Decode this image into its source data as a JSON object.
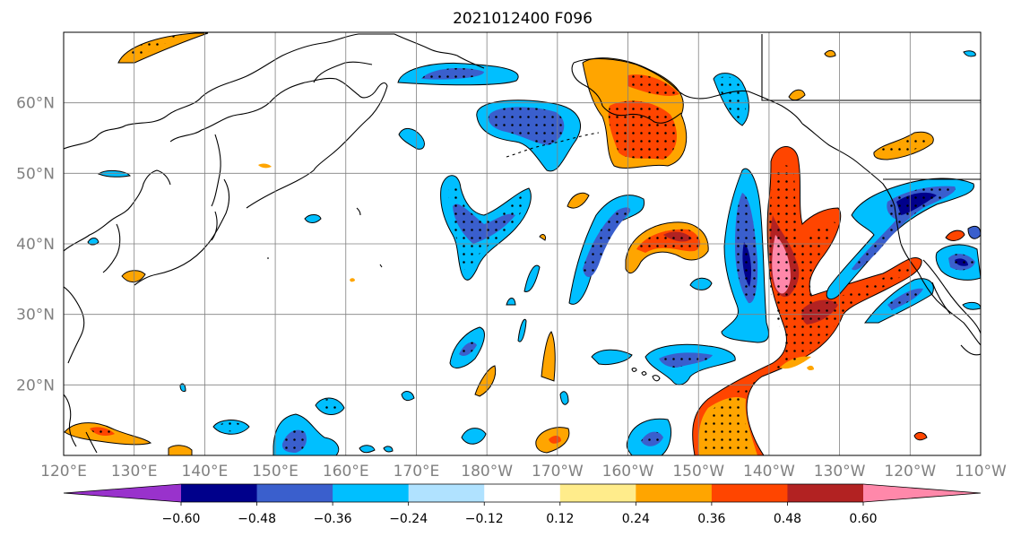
{
  "title": "2021012400 F096",
  "map": {
    "lon_range": [
      120,
      250
    ],
    "lat_range": [
      10,
      70
    ],
    "lon_ticks": [
      {
        "value": 120,
        "label": "120°E"
      },
      {
        "value": 130,
        "label": "130°E"
      },
      {
        "value": 140,
        "label": "140°E"
      },
      {
        "value": 150,
        "label": "150°E"
      },
      {
        "value": 160,
        "label": "160°E"
      },
      {
        "value": 170,
        "label": "170°E"
      },
      {
        "value": 180,
        "label": "180°W"
      },
      {
        "value": 190,
        "label": "170°W"
      },
      {
        "value": 200,
        "label": "160°W"
      },
      {
        "value": 210,
        "label": "150°W"
      },
      {
        "value": 220,
        "label": "140°W"
      },
      {
        "value": 230,
        "label": "130°W"
      },
      {
        "value": 240,
        "label": "120°W"
      },
      {
        "value": 250,
        "label": "110°W"
      }
    ],
    "lat_ticks": [
      {
        "value": 20,
        "label": "20°N"
      },
      {
        "value": 30,
        "label": "30°N"
      },
      {
        "value": 40,
        "label": "40°N"
      },
      {
        "value": 50,
        "label": "50°N"
      },
      {
        "value": 60,
        "label": "60°N"
      }
    ],
    "grid": true
  },
  "colorbar": {
    "levels": [
      -0.72,
      -0.6,
      -0.48,
      -0.36,
      -0.24,
      -0.12,
      0.12,
      0.24,
      0.36,
      0.48,
      0.6,
      0.72
    ],
    "colors": [
      "#9932CC",
      "#00008B",
      "#3A5FCD",
      "#00BFFF",
      "#B0E2FF",
      "#FFFFFF",
      "#FFEC8B",
      "#FFA500",
      "#FF4500",
      "#B22222",
      "#FF88AA"
    ],
    "extend": "both",
    "tick_labels": [
      "−0.60",
      "−0.48",
      "−0.36",
      "−0.24",
      "−0.12",
      "0.12",
      "0.24",
      "0.36",
      "0.48",
      "0.60"
    ],
    "tick_values": [
      -0.6,
      -0.48,
      -0.36,
      -0.24,
      -0.12,
      0.12,
      0.24,
      0.36,
      0.48,
      0.6
    ]
  },
  "anomaly_regions": [
    {
      "name": "kamchatka-west",
      "lon": 131,
      "lat": 66,
      "value": 0.3
    },
    {
      "name": "aleutian-west-low",
      "lon": 174,
      "lat": 62.5,
      "value": -0.42
    },
    {
      "name": "bering-low",
      "lon": 179,
      "lat": 57,
      "value": -0.44
    },
    {
      "name": "alaska-high",
      "lon": 197,
      "lat": 57,
      "value": 0.42
    },
    {
      "name": "nw-pacific-trough",
      "lon": 180,
      "lat": 42,
      "value": -0.38
    },
    {
      "name": "central-pacific-ridge",
      "lon": 206,
      "lat": 41,
      "value": 0.45
    },
    {
      "name": "east-pacific-trough",
      "lon": 215,
      "lat": 37,
      "value": -0.46
    },
    {
      "name": "coastal-ridge",
      "lon": 221,
      "lat": 40,
      "value": 0.58
    },
    {
      "name": "western-us-trough",
      "lon": 238,
      "lat": 42,
      "value": -0.45
    },
    {
      "name": "subtropical-ridge-band",
      "lon": 218,
      "lat": 20,
      "value": 0.4
    },
    {
      "name": "hawaii-trough",
      "lon": 206,
      "lat": 24,
      "value": -0.34
    },
    {
      "name": "tropical-trough",
      "lon": 159,
      "lat": 14,
      "value": -0.33
    }
  ]
}
